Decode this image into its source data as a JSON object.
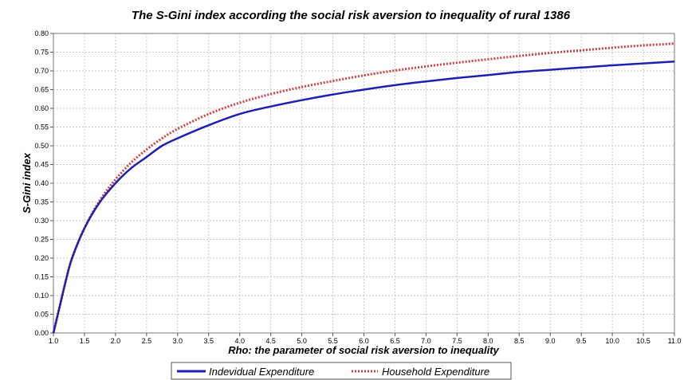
{
  "chart_data": {
    "type": "line",
    "title": "The S-Gini index according the social risk aversion to inequality of rural 1386",
    "xlabel": "Rho: the parameter of social risk aversion to inequality",
    "ylabel": "S-Gini index",
    "xlim": [
      1.0,
      11.0
    ],
    "ylim": [
      0.0,
      0.8
    ],
    "xticks": [
      "1.0",
      "1.5",
      "2.0",
      "2.5",
      "3.0",
      "3.5",
      "4.0",
      "4.5",
      "5.0",
      "5.5",
      "6.0",
      "6.5",
      "7.0",
      "7.5",
      "8.0",
      "8.5",
      "9.0",
      "9.5",
      "10.0",
      "10.5",
      "11.0"
    ],
    "yticks": [
      "0.00",
      "0.05",
      "0.10",
      "0.15",
      "0.20",
      "0.25",
      "0.30",
      "0.35",
      "0.40",
      "0.45",
      "0.50",
      "0.55",
      "0.60",
      "0.65",
      "0.70",
      "0.75",
      "0.80"
    ],
    "grid": true,
    "legend_position": "bottom",
    "x": [
      1.0,
      1.1,
      1.2,
      1.3,
      1.5,
      1.75,
      2.0,
      2.25,
      2.5,
      2.75,
      3.0,
      3.5,
      4.0,
      4.5,
      5.0,
      5.5,
      6.0,
      6.5,
      7.0,
      7.5,
      8.0,
      8.5,
      9.0,
      9.5,
      10.0,
      10.5,
      11.0
    ],
    "series": [
      {
        "name": "Indevidual Expenditure",
        "color": "#2020b0",
        "style": "solid",
        "values": [
          0.0,
          0.07,
          0.14,
          0.2,
          0.28,
          0.35,
          0.4,
          0.44,
          0.47,
          0.5,
          0.52,
          0.555,
          0.585,
          0.605,
          0.622,
          0.637,
          0.65,
          0.662,
          0.672,
          0.681,
          0.689,
          0.697,
          0.703,
          0.709,
          0.715,
          0.72,
          0.725
        ]
      },
      {
        "name": "Household Expenditure",
        "color": "#d04040",
        "style": "dotted",
        "values": [
          0.0,
          0.07,
          0.14,
          0.2,
          0.28,
          0.355,
          0.41,
          0.455,
          0.49,
          0.52,
          0.545,
          0.585,
          0.615,
          0.638,
          0.657,
          0.673,
          0.688,
          0.701,
          0.712,
          0.722,
          0.731,
          0.74,
          0.748,
          0.755,
          0.762,
          0.768,
          0.773
        ]
      }
    ]
  }
}
